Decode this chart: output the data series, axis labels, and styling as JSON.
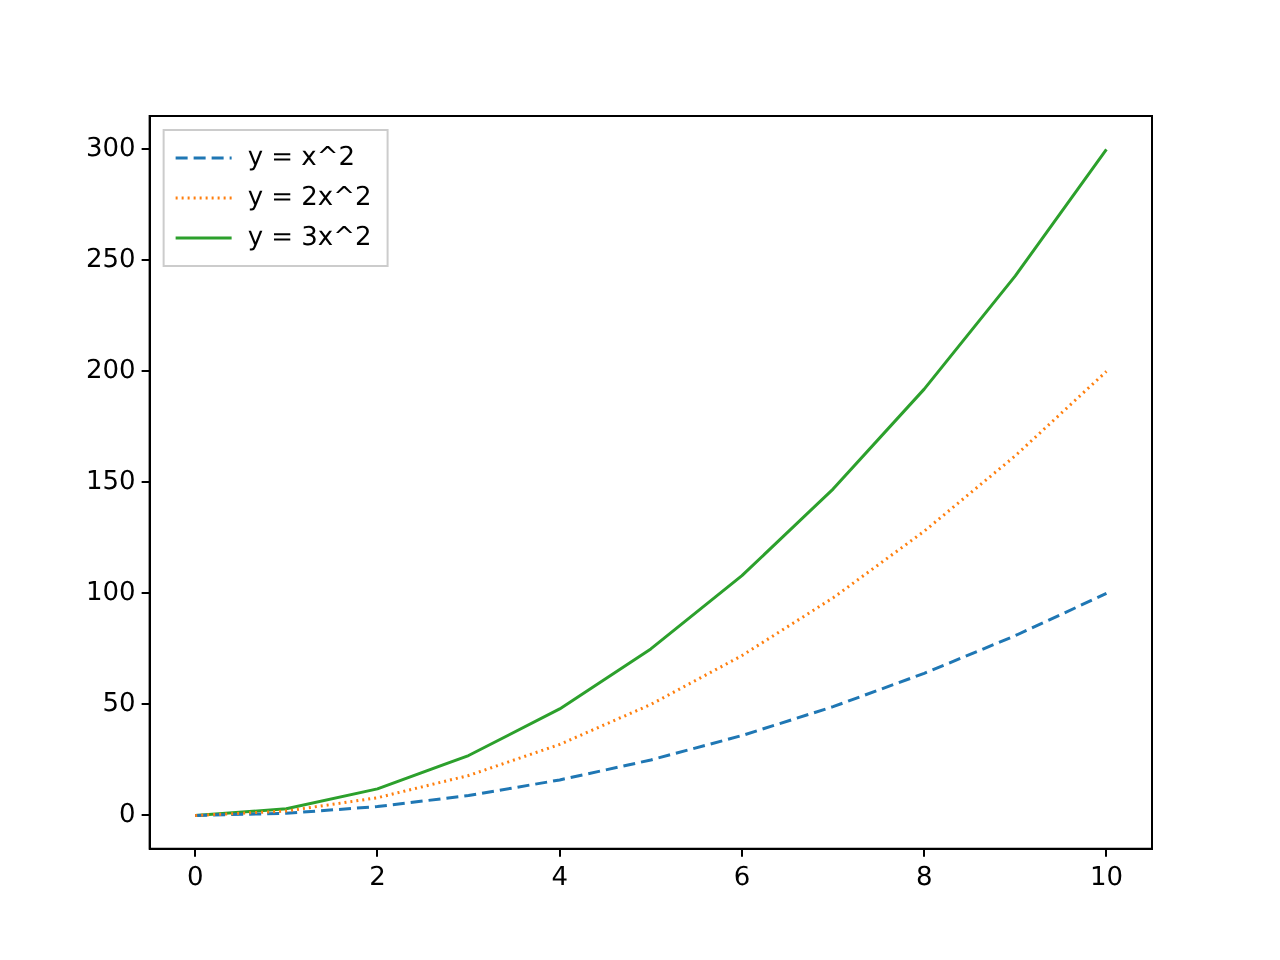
{
  "chart_data": {
    "type": "line",
    "x": [
      0,
      1,
      2,
      3,
      4,
      5,
      6,
      7,
      8,
      9,
      10
    ],
    "series": [
      {
        "name": "y = x^2",
        "color": "#1f77b4",
        "line_style": "dashed",
        "values": [
          0,
          1,
          4,
          9,
          16,
          25,
          36,
          49,
          64,
          81,
          100
        ]
      },
      {
        "name": "y = 2x^2",
        "color": "#ff7f0e",
        "line_style": "dotted",
        "values": [
          0,
          2,
          8,
          18,
          32,
          50,
          72,
          98,
          128,
          162,
          200
        ]
      },
      {
        "name": "y = 3x^2",
        "color": "#2ca02c",
        "line_style": "solid",
        "values": [
          0,
          3,
          12,
          27,
          48,
          75,
          108,
          147,
          192,
          243,
          300
        ]
      }
    ],
    "xlim": [
      -0.5,
      10.5
    ],
    "xticks": [
      0,
      2,
      4,
      6,
      8,
      10
    ],
    "ylim": [
      -15,
      315
    ],
    "yticks": [
      0,
      50,
      100,
      150,
      200,
      250,
      300
    ],
    "grid": false,
    "legend": "top left"
  }
}
